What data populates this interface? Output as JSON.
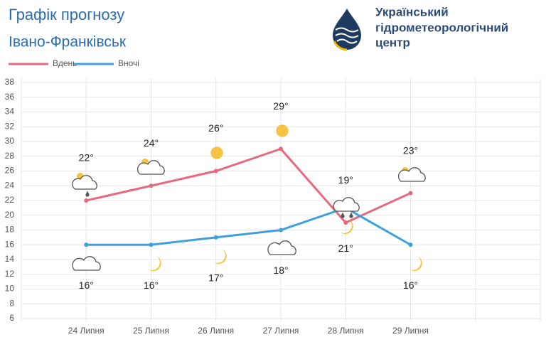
{
  "chart_data": {
    "type": "line",
    "title": "Графік прогнозу",
    "subtitle": "Івано-Франківськ",
    "organization": [
      "Український",
      "гідрометеорологічний",
      "центр"
    ],
    "categories": [
      "24 Липня",
      "25 Липня",
      "26 Липня",
      "27 Липня",
      "28 Липня",
      "29 Липня"
    ],
    "series": [
      {
        "name": "Вдень",
        "color": "#e8697f",
        "values": [
          22,
          24,
          26,
          29,
          19,
          23
        ],
        "value_labels": [
          "22°",
          "24°",
          "26°",
          "29°",
          "19°",
          "23°"
        ]
      },
      {
        "name": "Вночі",
        "color": "#3fa0db",
        "values": [
          16,
          16,
          17,
          18,
          21,
          16
        ],
        "value_labels": [
          "16°",
          "16°",
          "17°",
          "18°",
          "21°",
          "16°"
        ]
      }
    ],
    "ylim": [
      6,
      38
    ],
    "yticks": [
      6,
      8,
      10,
      12,
      14,
      16,
      18,
      20,
      22,
      24,
      26,
      28,
      30,
      32,
      34,
      36,
      38
    ],
    "grid": true
  }
}
